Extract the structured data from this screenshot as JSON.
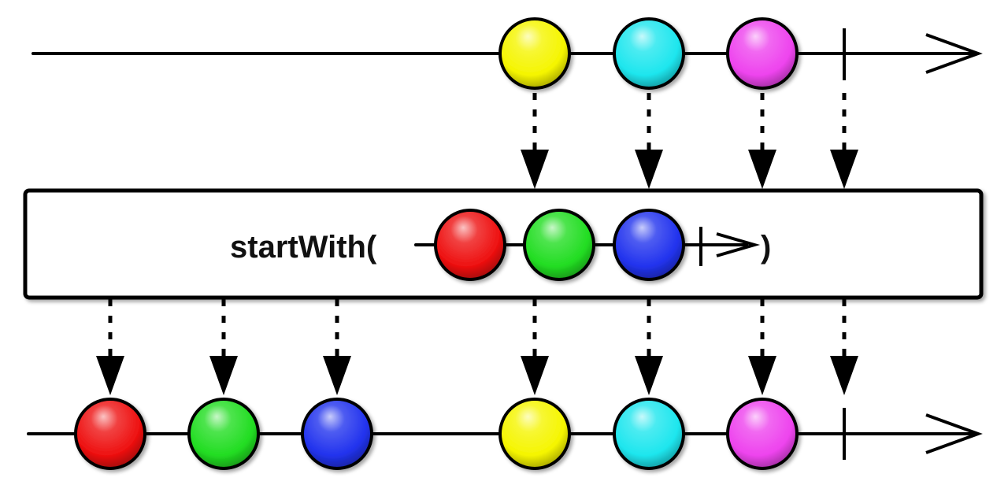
{
  "operator": {
    "name": "startWith(",
    "closing": ")",
    "prefix_items": [
      {
        "id": "red",
        "color": "#ee1111"
      },
      {
        "id": "green",
        "color": "#22dd22"
      },
      {
        "id": "blue",
        "color": "#2233ee"
      }
    ]
  },
  "source": {
    "items": [
      {
        "id": "yellow",
        "color": "#f5f500"
      },
      {
        "id": "cyan",
        "color": "#1ee6ee"
      },
      {
        "id": "magenta",
        "color": "#ee44ee"
      }
    ],
    "completes": true
  },
  "result": {
    "items": [
      {
        "id": "red",
        "color": "#ee1111"
      },
      {
        "id": "green",
        "color": "#22dd22"
      },
      {
        "id": "blue",
        "color": "#2233ee"
      },
      {
        "id": "yellow",
        "color": "#f5f500"
      },
      {
        "id": "cyan",
        "color": "#1ee6ee"
      },
      {
        "id": "magenta",
        "color": "#ee44ee"
      }
    ],
    "completes": true
  }
}
